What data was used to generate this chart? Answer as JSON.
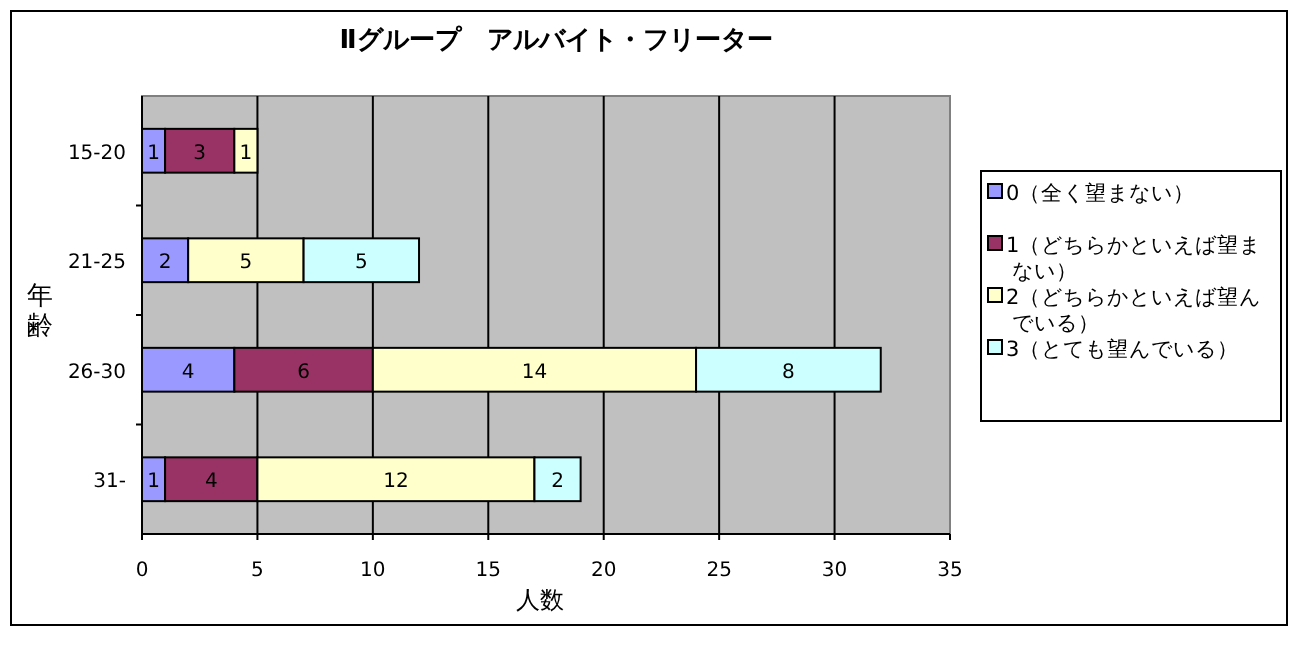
{
  "chart_data": {
    "type": "bar",
    "orientation": "horizontal",
    "stacked": true,
    "title": "Ⅱグループ　アルバイト・フリーター",
    "xlabel": "人数",
    "ylabel": "年齢",
    "categories": [
      "15-20",
      "21-25",
      "26-30",
      "31-"
    ],
    "series": [
      {
        "name": "0（全く望まない）",
        "color": "#9999ff",
        "values": [
          1,
          2,
          4,
          1
        ]
      },
      {
        "name": "1（どちらかといえば望まない）",
        "color": "#993366",
        "values": [
          3,
          null,
          6,
          4
        ]
      },
      {
        "name": "2（どちらかといえば望んでいる）",
        "color": "#ffffcc",
        "values": [
          1,
          5,
          14,
          12
        ]
      },
      {
        "name": "3（とても望んでいる）",
        "color": "#ccffff",
        "values": [
          null,
          5,
          8,
          2
        ]
      }
    ],
    "xlim": [
      0,
      35
    ],
    "xticks": [
      0,
      5,
      10,
      15,
      20,
      25,
      30,
      35
    ],
    "grid": "x",
    "data_labels": true,
    "legend": "right"
  }
}
